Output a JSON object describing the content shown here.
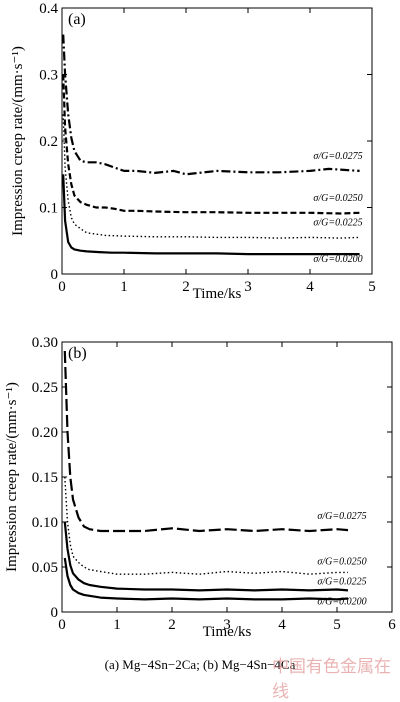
{
  "chart_data": [
    {
      "type": "line",
      "panel_label": "(a)",
      "xlabel": "Time/ks",
      "ylabel": "Impression creep rate/(mm·s⁻¹)",
      "xlim": [
        0,
        5
      ],
      "ylim": [
        0,
        0.4
      ],
      "xticks": [
        "0",
        "1",
        "2",
        "3",
        "4",
        "5"
      ],
      "yticks": [
        "0",
        "0.1",
        "0.2",
        "0.3",
        "0.4"
      ],
      "series": [
        {
          "name": "σ/G=0.0275",
          "style": "dash-dot",
          "x": [
            0.02,
            0.05,
            0.1,
            0.15,
            0.2,
            0.3,
            0.4,
            0.55,
            0.7,
            0.85,
            1.0,
            1.2,
            1.5,
            1.8,
            2.0,
            2.5,
            3.0,
            3.5,
            4.0,
            4.3,
            4.8
          ],
          "y": [
            0.36,
            0.3,
            0.24,
            0.205,
            0.185,
            0.17,
            0.168,
            0.168,
            0.165,
            0.16,
            0.155,
            0.155,
            0.152,
            0.155,
            0.15,
            0.155,
            0.153,
            0.153,
            0.155,
            0.158,
            0.155
          ]
        },
        {
          "name": "σ/G=0.0250",
          "style": "dashed",
          "x": [
            0.02,
            0.05,
            0.1,
            0.15,
            0.2,
            0.3,
            0.4,
            0.55,
            0.7,
            0.85,
            1.0,
            1.2,
            1.5,
            2.0,
            2.5,
            3.0,
            3.5,
            4.0,
            4.5,
            4.8
          ],
          "y": [
            0.3,
            0.22,
            0.165,
            0.135,
            0.118,
            0.108,
            0.104,
            0.1,
            0.1,
            0.098,
            0.095,
            0.095,
            0.094,
            0.093,
            0.093,
            0.092,
            0.092,
            0.092,
            0.091,
            0.092
          ]
        },
        {
          "name": "σ/G=0.0225",
          "style": "dotted",
          "x": [
            0.02,
            0.05,
            0.1,
            0.15,
            0.2,
            0.3,
            0.4,
            0.55,
            0.7,
            1.0,
            1.5,
            2.0,
            2.5,
            3.0,
            3.5,
            4.0,
            4.5,
            4.8
          ],
          "y": [
            0.24,
            0.16,
            0.11,
            0.085,
            0.075,
            0.068,
            0.062,
            0.06,
            0.058,
            0.057,
            0.056,
            0.056,
            0.055,
            0.055,
            0.054,
            0.055,
            0.054,
            0.055
          ]
        },
        {
          "name": "σ/G=0.0200",
          "style": "solid",
          "x": [
            0.02,
            0.05,
            0.1,
            0.15,
            0.2,
            0.3,
            0.4,
            0.6,
            0.8,
            1.0,
            1.5,
            2.0,
            2.5,
            3.0,
            3.5,
            4.0,
            4.5,
            4.8
          ],
          "y": [
            0.15,
            0.08,
            0.048,
            0.04,
            0.037,
            0.035,
            0.034,
            0.033,
            0.032,
            0.032,
            0.031,
            0.031,
            0.031,
            0.03,
            0.03,
            0.03,
            0.03,
            0.03
          ]
        }
      ]
    },
    {
      "type": "line",
      "panel_label": "(b)",
      "xlabel": "Time/ks",
      "ylabel": "Impression creep rate/(mm·s⁻¹)",
      "xlim": [
        0,
        6
      ],
      "ylim": [
        0,
        0.3
      ],
      "xticks": [
        "0",
        "1",
        "2",
        "3",
        "4",
        "5",
        "6"
      ],
      "yticks": [
        "0",
        "0.05",
        "0.10",
        "0.15",
        "0.20",
        "0.25",
        "0.30"
      ],
      "series": [
        {
          "name": "σ/G=0.0275",
          "style": "long-dash",
          "x": [
            0.05,
            0.1,
            0.15,
            0.2,
            0.3,
            0.4,
            0.5,
            0.7,
            1.0,
            1.5,
            2.0,
            2.5,
            3.0,
            3.5,
            4.0,
            4.5,
            5.0,
            5.2
          ],
          "y": [
            0.29,
            0.2,
            0.15,
            0.125,
            0.105,
            0.095,
            0.092,
            0.09,
            0.09,
            0.09,
            0.093,
            0.09,
            0.092,
            0.09,
            0.092,
            0.09,
            0.092,
            0.091
          ]
        },
        {
          "name": "σ/G=0.0250",
          "style": "dotted",
          "x": [
            0.05,
            0.1,
            0.15,
            0.2,
            0.3,
            0.4,
            0.5,
            0.7,
            1.0,
            1.5,
            2.0,
            2.5,
            3.0,
            3.5,
            4.0,
            4.5,
            5.0,
            5.2
          ],
          "y": [
            0.15,
            0.1,
            0.075,
            0.062,
            0.055,
            0.05,
            0.047,
            0.045,
            0.042,
            0.042,
            0.044,
            0.042,
            0.045,
            0.043,
            0.045,
            0.042,
            0.044,
            0.044
          ]
        },
        {
          "name": "σ/G=0.0225",
          "style": "solid",
          "x": [
            0.05,
            0.1,
            0.15,
            0.2,
            0.3,
            0.4,
            0.5,
            0.7,
            1.0,
            1.5,
            2.0,
            2.5,
            3.0,
            3.5,
            4.0,
            4.5,
            5.0,
            5.2
          ],
          "y": [
            0.1,
            0.07,
            0.052,
            0.043,
            0.036,
            0.032,
            0.03,
            0.028,
            0.026,
            0.025,
            0.025,
            0.024,
            0.025,
            0.024,
            0.025,
            0.024,
            0.025,
            0.024
          ]
        },
        {
          "name": "σ/G=0.0200",
          "style": "solid",
          "x": [
            0.05,
            0.1,
            0.15,
            0.2,
            0.3,
            0.4,
            0.5,
            0.7,
            1.0,
            1.5,
            2.0,
            2.5,
            3.0,
            3.5,
            4.0,
            4.5,
            5.0,
            5.2
          ],
          "y": [
            0.06,
            0.04,
            0.03,
            0.025,
            0.021,
            0.019,
            0.018,
            0.016,
            0.015,
            0.014,
            0.015,
            0.014,
            0.015,
            0.014,
            0.014,
            0.015,
            0.014,
            0.015
          ]
        }
      ]
    }
  ],
  "caption": "(a)  Mg−4Sn−2Ca; (b) Mg−4Sn−4Ca",
  "watermark": "中国有色金属在线",
  "colors": {
    "ink": "#000000",
    "watermark": "#e39a9a"
  }
}
